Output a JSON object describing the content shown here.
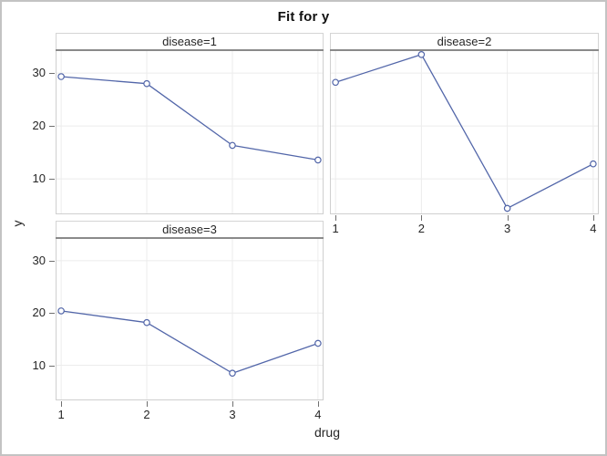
{
  "chart_data": {
    "type": "line",
    "title": "Fit for y",
    "xlabel": "drug",
    "ylabel": "y",
    "x": [
      1,
      2,
      3,
      4
    ],
    "xticks": [
      "1",
      "2",
      "3",
      "4"
    ],
    "yticks": [
      "10",
      "20",
      "30"
    ],
    "xlim": [
      0.935,
      4.065
    ],
    "ylim": [
      3.3,
      34.5
    ],
    "grid": true,
    "marker": "open-circle",
    "legend": "none",
    "panels": [
      {
        "label": "disease=1",
        "values": [
          29.33,
          28.0,
          16.33,
          13.57
        ]
      },
      {
        "label": "disease=2",
        "values": [
          28.25,
          33.5,
          4.43,
          12.83
        ]
      },
      {
        "label": "disease=3",
        "values": [
          20.4,
          18.17,
          8.5,
          14.2
        ]
      }
    ]
  },
  "colors": {
    "line": "#5266a9",
    "marker_stroke": "#5266a9",
    "marker_fill": "#ffffff",
    "grid": "#ececec",
    "wall_border": "#cfcfcf",
    "wall_top_border": "#8a8a8a",
    "header_border": "#d4d4d4",
    "outer_border": "#c3c3c3",
    "tick": "#707070",
    "text": "#262626",
    "background": "#ffffff"
  }
}
